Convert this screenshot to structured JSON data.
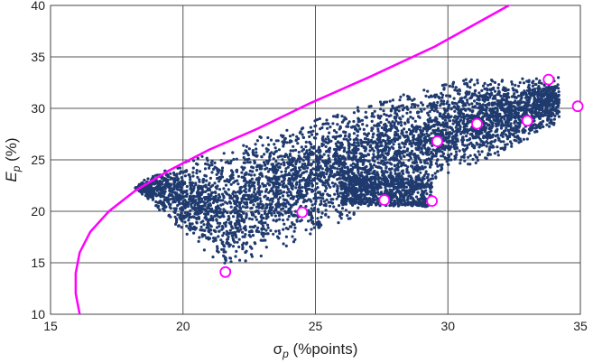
{
  "chart_data": {
    "type": "scatter",
    "title": "",
    "xlabel": "σp (%points)",
    "ylabel": "Ep (%)",
    "xlim": [
      15,
      35
    ],
    "ylim": [
      10,
      40
    ],
    "xticks": [
      "15",
      "20",
      "25",
      "30",
      "35"
    ],
    "yticks": [
      "10",
      "15",
      "20",
      "25",
      "30",
      "35",
      "40"
    ],
    "grid": true,
    "legend": "none",
    "colors": {
      "cloud": "#1f3a6e",
      "frontier": "#ff00ff",
      "markers_stroke": "#ff00ff",
      "markers_fill": "#ffffff"
    },
    "series": [
      {
        "kind": "curve",
        "x": [
          16.1,
          15.95,
          15.95,
          16.1,
          16.5,
          17.2,
          18.2,
          19.5,
          21.0,
          22.8,
          24.8,
          27.0,
          29.5,
          32.3
        ],
        "y": [
          10.0,
          12.0,
          14.0,
          16.0,
          18.0,
          20.0,
          22.0,
          24.0,
          26.0,
          28.0,
          30.5,
          33.0,
          36.0,
          40.0
        ]
      },
      {
        "kind": "markers",
        "x": [
          21.6,
          24.5,
          27.6,
          29.4,
          29.6,
          31.1,
          33.0,
          33.8,
          34.9
        ],
        "y": [
          14.1,
          19.9,
          21.1,
          21.0,
          26.8,
          28.5,
          28.8,
          32.8,
          30.2
        ]
      }
    ]
  }
}
